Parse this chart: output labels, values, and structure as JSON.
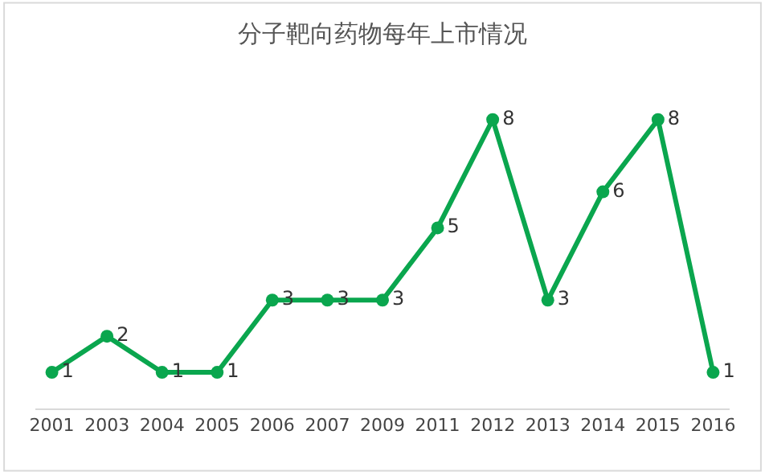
{
  "chart_data": {
    "type": "line",
    "title": "分子靶向药物每年上市情况",
    "categories": [
      "2001",
      "2003",
      "2004",
      "2005",
      "2006",
      "2007",
      "2009",
      "2011",
      "2012",
      "2013",
      "2014",
      "2015",
      "2016"
    ],
    "series": [
      {
        "color": "#0aa64e",
        "values": [
          1,
          2,
          1,
          1,
          3,
          3,
          3,
          5,
          8,
          3,
          6,
          8,
          1
        ]
      }
    ],
    "data_labels": true,
    "marker": "circle",
    "line_style": "solid",
    "legend": false,
    "tick_labels": "x"
  }
}
